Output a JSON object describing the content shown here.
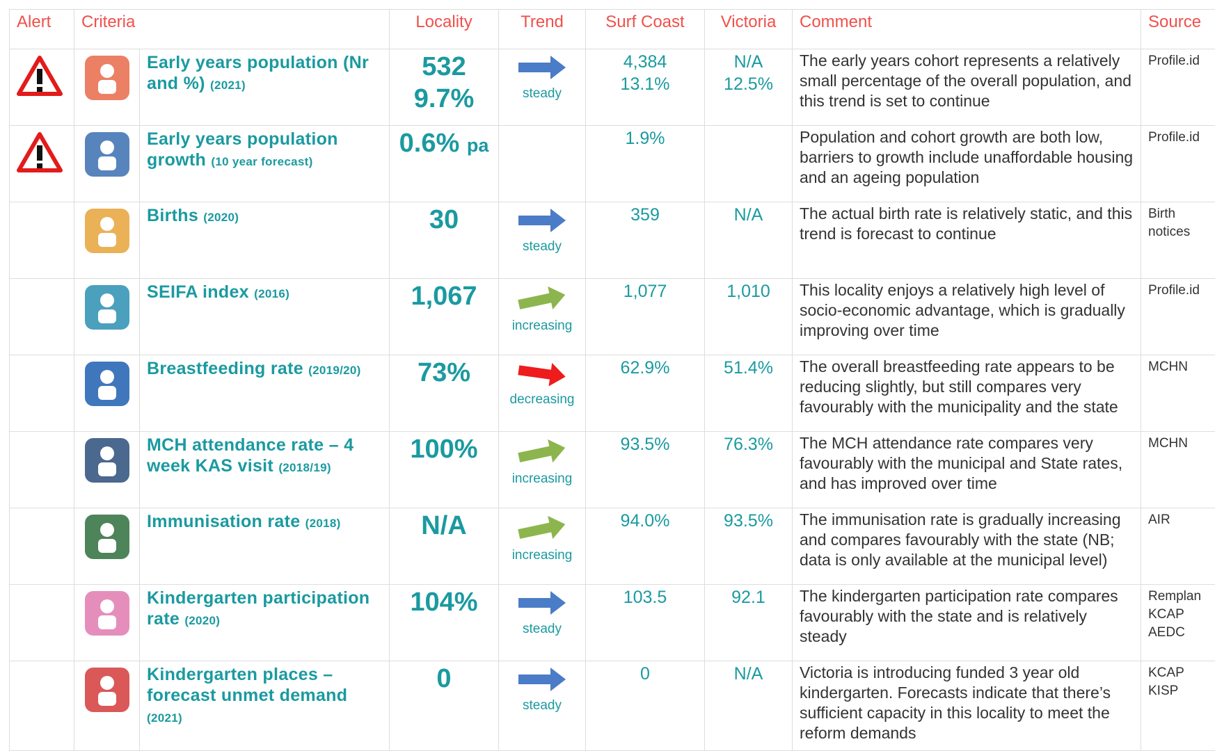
{
  "table": {
    "header": [
      "Alert",
      "Criteria",
      "Locality",
      "Trend",
      "Surf Coast",
      "Victoria",
      "Comment",
      "Source"
    ],
    "rows": [
      {
        "alert": true,
        "criteria": "Early years population (Nr and %)",
        "note": "(2021)",
        "locality": [
          "532",
          "9.7%"
        ],
        "trend": "steady",
        "trend_color": "#4a7cc7",
        "surf_coast": [
          "4,384",
          "13.1%"
        ],
        "victoria": [
          "N/A",
          "12.5%"
        ],
        "comment": "The early years cohort represents a relatively small percentage of the overall population, and this trend is set to continue",
        "source": [
          "Profile.id"
        ]
      },
      {
        "alert": true,
        "criteria": "Early years population growth",
        "note": "(10 year forecast)",
        "locality": [
          "0.6%"
        ],
        "locality_suffix": "pa",
        "surf_coast": [
          "1.9%"
        ],
        "victoria": [],
        "comment": "Population and cohort growth are both low, barriers to growth include unaffordable housing and an ageing population",
        "source": [
          "Profile.id"
        ]
      },
      {
        "alert": false,
        "criteria": "Births",
        "note": "(2020)",
        "locality": [
          "30"
        ],
        "trend": "steady",
        "trend_color": "#4a7cc7",
        "surf_coast": [
          "359"
        ],
        "victoria": [
          "N/A"
        ],
        "comment": "The actual birth rate is relatively static, and this trend is forecast to continue",
        "source": [
          "Birth",
          "notices"
        ]
      },
      {
        "alert": false,
        "criteria": "SEIFA index",
        "note": "(2016)",
        "locality": [
          "1,067"
        ],
        "trend": "increasing",
        "trend_color": "#8db54e",
        "surf_coast": [
          "1,077"
        ],
        "victoria": [
          "1,010"
        ],
        "comment": "This locality enjoys a relatively high level of socio-economic advantage, which is gradually improving over time",
        "source": [
          "Profile.id"
        ]
      },
      {
        "alert": false,
        "criteria": "Breastfeeding rate",
        "note": "(2019/20)",
        "locality": [
          "73%"
        ],
        "trend": "decreasing",
        "trend_color": "#ee1c1c",
        "surf_coast": [
          "62.9%"
        ],
        "victoria": [
          "51.4%"
        ],
        "comment": "The overall breastfeeding rate appears to be reducing slightly, but still compares very favourably with the municipality and the state",
        "source": [
          "MCHN"
        ]
      },
      {
        "alert": false,
        "criteria": "MCH attendance rate – 4 week KAS visit",
        "note": "(2018/19)",
        "locality": [
          "100%"
        ],
        "trend": "increasing",
        "trend_color": "#8db54e",
        "surf_coast": [
          "93.5%"
        ],
        "victoria": [
          "76.3%"
        ],
        "comment": "The MCH attendance rate compares very favourably with the municipal and State rates, and has improved over time",
        "source": [
          "MCHN"
        ]
      },
      {
        "alert": false,
        "criteria": "Immunisation rate",
        "note": "(2018)",
        "locality": [
          "N/A"
        ],
        "trend": "increasing",
        "trend_color": "#8db54e",
        "surf_coast": [
          "94.0%"
        ],
        "victoria": [
          "93.5%"
        ],
        "comment": "The immunisation rate is gradually increasing and compares favourably with the state (NB; data is only available at the municipal level)",
        "source": [
          "AIR"
        ]
      },
      {
        "alert": false,
        "criteria": "Kindergarten participation rate",
        "note": "(2020)",
        "locality": [
          "104%"
        ],
        "trend": "steady",
        "trend_color": "#4a7cc7",
        "surf_coast": [
          "103.5"
        ],
        "victoria": [
          "92.1"
        ],
        "comment": "The kindergarten participation rate compares favourably with the state and is relatively steady",
        "source": [
          "Remplan",
          "KCAP",
          "AEDC"
        ]
      },
      {
        "alert": false,
        "criteria": "Kindergarten places – forecast unmet demand",
        "note": "(2021)",
        "locality": [
          "0"
        ],
        "trend": "steady",
        "trend_color": "#4a7cc7",
        "surf_coast": [
          "0"
        ],
        "victoria": [
          "N/A"
        ],
        "comment": "Victoria is introducing funded 3 year old kindergarten. Forecasts indicate that there’s sufficient capacity in this locality to meet the reform demands",
        "source": [
          "KCAP",
          "KISP"
        ]
      }
    ]
  }
}
